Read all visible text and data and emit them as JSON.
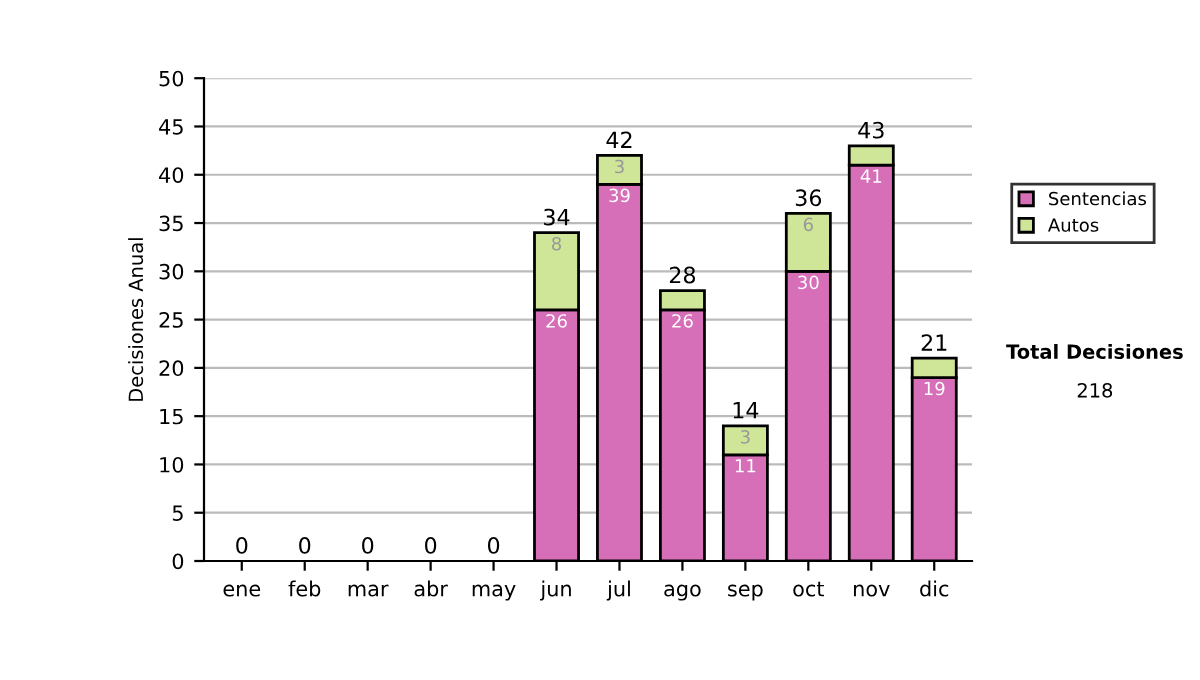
{
  "chart_data": {
    "type": "bar",
    "stacked": true,
    "ylabel": "Decisiones Anual",
    "categories": [
      "ene",
      "feb",
      "mar",
      "abr",
      "may",
      "jun",
      "jul",
      "ago",
      "sep",
      "oct",
      "nov",
      "dic"
    ],
    "series": [
      {
        "name": "Sentencias",
        "color": "#d66eb8",
        "values": [
          0,
          0,
          0,
          0,
          0,
          26,
          39,
          26,
          11,
          30,
          41,
          19
        ],
        "value_labels": [
          null,
          null,
          null,
          null,
          null,
          "26",
          "39",
          "26",
          "11",
          "30",
          "41",
          "19"
        ]
      },
      {
        "name": "Autos",
        "color": "#cfe597",
        "values": [
          0,
          0,
          0,
          0,
          0,
          8,
          3,
          2,
          3,
          6,
          2,
          2
        ],
        "value_labels": [
          null,
          null,
          null,
          null,
          null,
          "8",
          "3",
          null,
          "3",
          "6",
          null,
          null
        ]
      }
    ],
    "totals": [
      "0",
      "0",
      "0",
      "0",
      "0",
      "34",
      "42",
      "28",
      "14",
      "36",
      "43",
      "21"
    ],
    "ylim": [
      0,
      50
    ],
    "yticks": [
      0,
      5,
      10,
      15,
      20,
      25,
      30,
      35,
      40,
      45,
      50
    ],
    "grid": "y",
    "legend": "right",
    "annotations": [
      "Total Decisiones",
      "218"
    ]
  }
}
